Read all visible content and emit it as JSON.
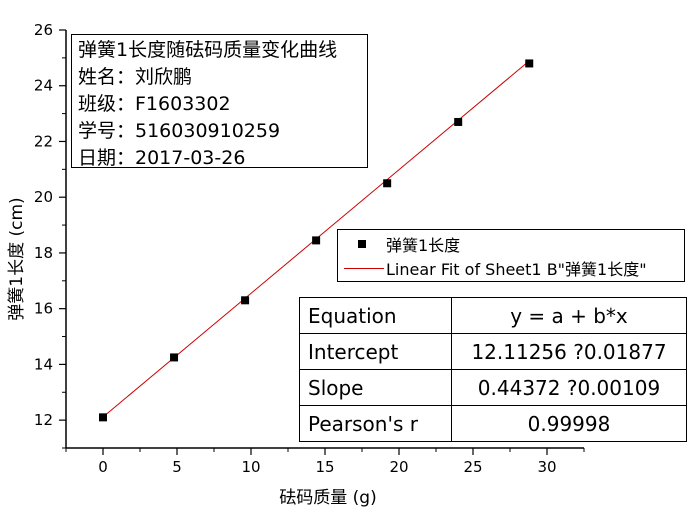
{
  "info_box": {
    "title": "弹簧1长度随砝码质量变化曲线",
    "name_line": "姓名：刘欣鹏",
    "class_line": "班级：F1603302",
    "id_line": "学号：516030910259",
    "date_line": "日期：2017-03-26"
  },
  "legend": {
    "series_label": "弹簧1长度",
    "fit_label": "Linear Fit of Sheet1 B\"弹簧1长度\""
  },
  "fit_table": [
    {
      "label": "Equation",
      "value": "y = a + b*x"
    },
    {
      "label": "Intercept",
      "value": "12.11256 ?0.01877"
    },
    {
      "label": "Slope",
      "value": "0.44372 ?0.00109"
    },
    {
      "label": "Pearson's r",
      "value": "0.99998"
    }
  ],
  "colors": {
    "fit_line": "#cc0000",
    "points": "#000000"
  },
  "chart_data": {
    "type": "scatter",
    "xlabel": "砝码质量 (g)",
    "ylabel": "弹簧1长度 (cm)",
    "xlim": [
      -2.5,
      32.5
    ],
    "ylim": [
      11,
      26
    ],
    "xticks": [
      0,
      5,
      10,
      15,
      20,
      25,
      30
    ],
    "yticks": [
      12,
      14,
      16,
      18,
      20,
      22,
      24,
      26
    ],
    "series": [
      {
        "name": "弹簧1长度",
        "x": [
          0,
          4.8,
          9.6,
          14.4,
          19.2,
          24.0,
          28.8
        ],
        "y": [
          12.1,
          14.25,
          16.3,
          18.45,
          20.5,
          22.7,
          24.8
        ]
      }
    ],
    "fit": {
      "intercept": 12.11256,
      "slope": 0.44372,
      "x_range": [
        0,
        28.8
      ]
    },
    "grid": false,
    "legend_position": "right"
  }
}
